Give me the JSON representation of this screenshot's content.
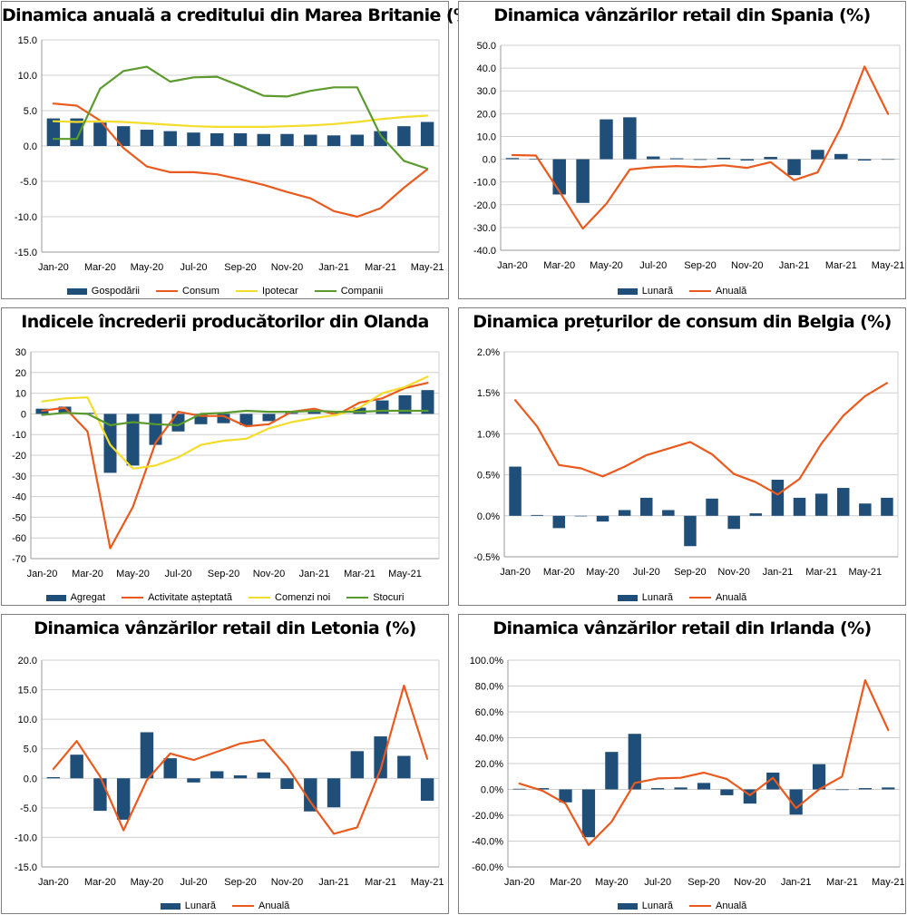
{
  "colors": {
    "bar": "#1f4e79",
    "orange": "#ea5a1e",
    "yellow": "#f3dc2a",
    "green": "#5b9b2e",
    "grid": "#cfcfcf",
    "axis": "#9a9a9a"
  },
  "chart_data": [
    {
      "type": "bar",
      "title": "Dinamica anuală a creditului din Marea Britanie (%)",
      "categories": [
        "Jan-20",
        "Feb-20",
        "Mar-20",
        "Apr-20",
        "May-20",
        "Jun-20",
        "Jul-20",
        "Aug-20",
        "Sep-20",
        "Oct-20",
        "Nov-20",
        "Dec-20",
        "Jan-21",
        "Feb-21",
        "Mar-21",
        "Apr-21",
        "May-21"
      ],
      "tick_labels": [
        "Jan-20",
        "Mar-20",
        "May-20",
        "Jul-20",
        "Sep-20",
        "Nov-20",
        "Jan-21",
        "Mar-21",
        "May-21"
      ],
      "ylim": [
        -15,
        15
      ],
      "yticks": [
        -15,
        -10,
        -5,
        0,
        5,
        10,
        15
      ],
      "y_decimals": 1,
      "y_suffix": "",
      "series": [
        {
          "name": "Gospodării",
          "kind": "bar",
          "color": "bar",
          "values": [
            3.9,
            3.9,
            3.3,
            2.8,
            2.3,
            2.1,
            1.9,
            1.8,
            1.8,
            1.7,
            1.7,
            1.6,
            1.5,
            1.6,
            2.1,
            2.8,
            3.4
          ]
        },
        {
          "name": "Consum",
          "kind": "line",
          "color": "orange",
          "values": [
            6.0,
            5.7,
            3.6,
            -0.3,
            -2.9,
            -3.7,
            -3.7,
            -4.0,
            -4.7,
            -5.5,
            -6.5,
            -7.4,
            -9.2,
            -10.0,
            -8.8,
            -5.9,
            -3.3
          ]
        },
        {
          "name": "Ipotecar",
          "kind": "line",
          "color": "yellow",
          "values": [
            3.5,
            3.4,
            3.5,
            3.4,
            3.2,
            3.0,
            2.8,
            2.7,
            2.7,
            2.7,
            2.8,
            2.9,
            3.1,
            3.4,
            3.8,
            4.1,
            4.3
          ]
        },
        {
          "name": "Companii",
          "kind": "line",
          "color": "green",
          "values": [
            1.0,
            1.0,
            8.1,
            10.6,
            11.2,
            9.1,
            9.7,
            9.8,
            8.5,
            7.1,
            7.0,
            7.8,
            8.3,
            8.3,
            1.5,
            -2.1,
            -3.2
          ]
        }
      ]
    },
    {
      "type": "bar",
      "title": "Dinamica vânzărilor retail din Spania (%)",
      "categories": [
        "Jan-20",
        "Feb-20",
        "Mar-20",
        "Apr-20",
        "May-20",
        "Jun-20",
        "Jul-20",
        "Aug-20",
        "Sep-20",
        "Oct-20",
        "Nov-20",
        "Dec-20",
        "Jan-21",
        "Feb-21",
        "Mar-21",
        "Apr-21",
        "May-21"
      ],
      "tick_labels": [
        "Jan-20",
        "Mar-20",
        "May-20",
        "Jul-20",
        "Sep-20",
        "Nov-20",
        "Jan-21",
        "Mar-21",
        "May-21"
      ],
      "ylim": [
        -40,
        50
      ],
      "yticks": [
        -40,
        -30,
        -20,
        -10,
        0,
        10,
        20,
        30,
        40,
        50
      ],
      "y_decimals": 1,
      "y_suffix": "",
      "series": [
        {
          "name": "Lunară",
          "kind": "bar",
          "color": "bar",
          "values": [
            0.5,
            0.2,
            -15.5,
            -19.2,
            17.5,
            18.4,
            1.2,
            0.4,
            -0.3,
            0.6,
            -0.6,
            1.0,
            -7.0,
            4.1,
            2.3,
            -0.6,
            0.0
          ]
        },
        {
          "name": "Anuală",
          "kind": "line",
          "color": "orange",
          "values": [
            1.8,
            1.6,
            -14.1,
            -30.5,
            -19.6,
            -4.5,
            -3.5,
            -3.0,
            -3.5,
            -2.7,
            -3.8,
            -1.3,
            -9.2,
            -5.8,
            14.0,
            40.7,
            19.9
          ]
        }
      ]
    },
    {
      "type": "bar",
      "title": "Indicele încrederii producătorilor din Olanda",
      "categories": [
        "Jan-20",
        "Feb-20",
        "Mar-20",
        "Apr-20",
        "May-20",
        "Jun-20",
        "Jul-20",
        "Aug-20",
        "Sep-20",
        "Oct-20",
        "Nov-20",
        "Dec-20",
        "Jan-21",
        "Feb-21",
        "Mar-21",
        "Apr-21",
        "May-21",
        "Jun-21"
      ],
      "tick_labels": [
        "Jan-20",
        "Mar-20",
        "May-20",
        "Jul-20",
        "Sep-20",
        "Nov-20",
        "Jan-21",
        "Mar-21",
        "May-21"
      ],
      "ylim": [
        -70,
        30
      ],
      "yticks": [
        -70,
        -60,
        -50,
        -40,
        -30,
        -20,
        -10,
        0,
        10,
        20,
        30
      ],
      "y_decimals": 0,
      "y_suffix": "",
      "series": [
        {
          "name": "Agregat",
          "kind": "bar",
          "color": "bar",
          "values": [
            2.5,
            3.5,
            0.5,
            -28.5,
            -25.0,
            -15.0,
            -8.5,
            -5.0,
            -4.5,
            -5.5,
            -3.5,
            0.5,
            1.0,
            0.5,
            3.0,
            6.5,
            9.0,
            11.5
          ]
        },
        {
          "name": "Activitate așteptată",
          "kind": "line",
          "color": "orange",
          "values": [
            1.5,
            3.0,
            -8.5,
            -65.0,
            -45.0,
            -14.0,
            1.0,
            -1.0,
            -1.0,
            -6.0,
            -5.0,
            1.0,
            2.5,
            -0.5,
            5.5,
            7.5,
            12.5,
            15.0
          ]
        },
        {
          "name": "Comenzi noi",
          "kind": "line",
          "color": "yellow",
          "values": [
            6.0,
            7.5,
            8.0,
            -15.0,
            -26.5,
            -25.0,
            -21.0,
            -15.0,
            -13.0,
            -12.0,
            -7.0,
            -4.0,
            -2.0,
            -0.5,
            3.0,
            10.0,
            13.0,
            18.0
          ]
        },
        {
          "name": "Stocuri",
          "kind": "line",
          "color": "green",
          "values": [
            -0.5,
            0.5,
            0.0,
            -5.5,
            -4.0,
            -5.0,
            -5.5,
            0.0,
            0.5,
            1.5,
            1.0,
            1.0,
            1.5,
            1.0,
            1.0,
            1.5,
            1.5,
            1.5
          ]
        }
      ]
    },
    {
      "type": "bar",
      "title": "Dinamica prețurilor de consum din Belgia (%)",
      "categories": [
        "Jan-20",
        "Feb-20",
        "Mar-20",
        "Apr-20",
        "May-20",
        "Jun-20",
        "Jul-20",
        "Aug-20",
        "Sep-20",
        "Oct-20",
        "Nov-20",
        "Dec-20",
        "Jan-21",
        "Feb-21",
        "Mar-21",
        "Apr-21",
        "May-21",
        "Jun-21"
      ],
      "tick_labels": [
        "Jan-20",
        "Mar-20",
        "May-20",
        "Jul-20",
        "Sep-20",
        "Nov-20",
        "Jan-21",
        "Mar-21",
        "May-21"
      ],
      "ylim": [
        -0.5,
        2.0
      ],
      "yticks": [
        -0.5,
        0.0,
        0.5,
        1.0,
        1.5,
        2.0
      ],
      "y_decimals": 1,
      "y_suffix": "%",
      "series": [
        {
          "name": "Lunară",
          "kind": "bar",
          "color": "bar",
          "values": [
            0.6,
            0.01,
            -0.15,
            0.0,
            -0.07,
            0.07,
            0.22,
            0.07,
            -0.37,
            0.21,
            -0.16,
            0.03,
            0.44,
            0.22,
            0.27,
            0.34,
            0.15,
            0.22
          ]
        },
        {
          "name": "Anuală",
          "kind": "line",
          "color": "orange",
          "values": [
            1.41,
            1.09,
            0.62,
            0.58,
            0.48,
            0.6,
            0.74,
            0.82,
            0.9,
            0.75,
            0.51,
            0.41,
            0.26,
            0.45,
            0.88,
            1.22,
            1.46,
            1.62
          ]
        }
      ]
    },
    {
      "type": "bar",
      "title": "Dinamica vânzărilor retail din Letonia (%)",
      "categories": [
        "Jan-20",
        "Feb-20",
        "Mar-20",
        "Apr-20",
        "May-20",
        "Jun-20",
        "Jul-20",
        "Aug-20",
        "Sep-20",
        "Oct-20",
        "Nov-20",
        "Dec-20",
        "Jan-21",
        "Feb-21",
        "Mar-21",
        "Apr-21",
        "May-21"
      ],
      "tick_labels": [
        "Jan-20",
        "Mar-20",
        "May-20",
        "Jul-20",
        "Sep-20",
        "Nov-20",
        "Jan-21",
        "Mar-21",
        "May-21"
      ],
      "ylim": [
        -15,
        20
      ],
      "yticks": [
        -15,
        -10,
        -5,
        0,
        5,
        10,
        15,
        20
      ],
      "y_decimals": 1,
      "y_suffix": "",
      "series": [
        {
          "name": "Lunară",
          "kind": "bar",
          "color": "bar",
          "values": [
            0.2,
            4.0,
            -5.5,
            -7.0,
            7.8,
            3.4,
            -0.7,
            1.2,
            0.5,
            1.0,
            -1.8,
            -5.6,
            -4.9,
            4.6,
            7.1,
            3.8,
            -3.8
          ]
        },
        {
          "name": "Anuală",
          "kind": "line",
          "color": "orange",
          "values": [
            1.6,
            6.3,
            0.3,
            -8.8,
            -0.3,
            4.2,
            3.1,
            4.5,
            5.9,
            6.5,
            2.0,
            -4.0,
            -9.4,
            -8.3,
            1.5,
            15.7,
            3.3
          ]
        }
      ]
    },
    {
      "type": "bar",
      "title": "Dinamica vânzărilor retail din Irlanda (%)",
      "categories": [
        "Jan-20",
        "Feb-20",
        "Mar-20",
        "Apr-20",
        "May-20",
        "Jun-20",
        "Jul-20",
        "Aug-20",
        "Sep-20",
        "Oct-20",
        "Nov-20",
        "Dec-20",
        "Jan-21",
        "Feb-21",
        "Mar-21",
        "Apr-21",
        "May-21"
      ],
      "tick_labels": [
        "Jan-20",
        "Mar-20",
        "May-20",
        "Jul-20",
        "Sep-20",
        "Nov-20",
        "Jan-21",
        "Mar-21",
        "May-21"
      ],
      "ylim": [
        -60,
        100
      ],
      "yticks": [
        -60,
        -40,
        -20,
        0,
        20,
        40,
        60,
        80,
        100
      ],
      "y_decimals": 1,
      "y_suffix": "%",
      "series": [
        {
          "name": "Lunară",
          "kind": "bar",
          "color": "bar",
          "values": [
            0.5,
            1.0,
            -10.0,
            -37.0,
            29.0,
            43.0,
            1.0,
            1.5,
            5.0,
            -4.5,
            -11.0,
            13.0,
            -19.5,
            19.5,
            -0.5,
            1.0,
            1.5
          ]
        },
        {
          "name": "Anuală",
          "kind": "line",
          "color": "orange",
          "values": [
            4.5,
            -1.0,
            -11.0,
            -43.0,
            -25.0,
            5.0,
            8.5,
            9.0,
            13.0,
            8.0,
            -4.5,
            9.0,
            -14.5,
            0.0,
            10.0,
            84.5,
            46.0
          ]
        }
      ]
    }
  ]
}
